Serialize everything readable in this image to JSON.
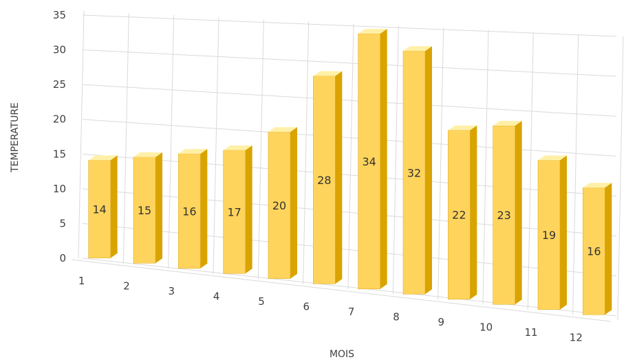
{
  "chart_data": {
    "type": "bar",
    "categories": [
      "1",
      "2",
      "3",
      "4",
      "5",
      "6",
      "7",
      "8",
      "9",
      "10",
      "11",
      "12"
    ],
    "values": [
      14,
      15,
      16,
      17,
      20,
      28,
      34,
      32,
      22,
      23,
      19,
      16
    ],
    "title": "",
    "xlabel": "MOIS",
    "ylabel": "TEMPERATURE",
    "ylim": [
      0,
      35
    ],
    "yticks": [
      "0",
      "5",
      "10",
      "15",
      "20",
      "25",
      "30",
      "35"
    ],
    "grid": true,
    "three_d": true,
    "bar_color": "#ffd45c",
    "bar_side_color": "#d9a300",
    "bar_top_color": "#fff0a8"
  }
}
